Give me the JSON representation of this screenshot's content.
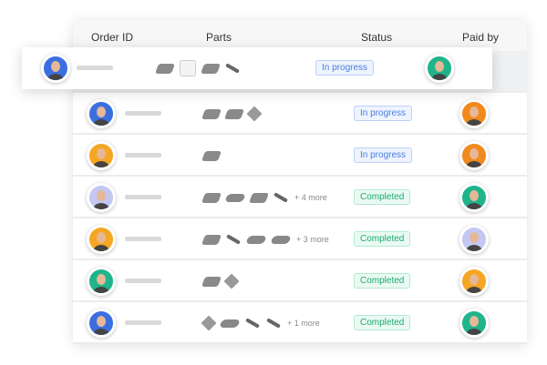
{
  "header": {
    "order_id": "Order ID",
    "parts": "Parts",
    "status": "Status",
    "paid_by": "Paid by"
  },
  "colors": {
    "in_progress": "#4a7de0",
    "completed": "#1ba876"
  },
  "floating_row": {
    "avatar_color": "#3b6fe0",
    "parts": [
      "bracket",
      "pyramid-model",
      "housing",
      "y-connector"
    ],
    "more": "",
    "status": "In progress",
    "status_type": "prog",
    "payer_color": "#1fb48b"
  },
  "rows": [
    {
      "avatar_color": "#3b6fe0",
      "parts": [
        "bracket",
        "block",
        "plate-cross"
      ],
      "more": "",
      "status": "In progress",
      "status_type": "prog",
      "payer_color": "#f08a1c"
    },
    {
      "avatar_color": "#f5a623",
      "parts": [
        "bracket"
      ],
      "more": "",
      "status": "In progress",
      "status_type": "prog",
      "payer_color": "#f08a1c"
    },
    {
      "avatar_color": "#c3c8f2",
      "parts": [
        "bracket",
        "cylinder",
        "housing",
        "y-connector"
      ],
      "more": "+ 4 more",
      "status": "Completed",
      "status_type": "done",
      "payer_color": "#1fb48b"
    },
    {
      "avatar_color": "#f5a623",
      "parts": [
        "bracket",
        "y-fitting",
        "pin",
        "tube"
      ],
      "more": "+ 3 more",
      "status": "Completed",
      "status_type": "done",
      "payer_color": "#c3c8f2"
    },
    {
      "avatar_color": "#1fb48b",
      "parts": [
        "bracket",
        "plate"
      ],
      "more": "",
      "status": "Completed",
      "status_type": "done",
      "payer_color": "#f5a623"
    },
    {
      "avatar_color": "#3b6fe0",
      "parts": [
        "plate",
        "cylinder",
        "y-fitting",
        "y-connector"
      ],
      "more": "+ 1 more",
      "status": "Completed",
      "status_type": "done",
      "payer_color": "#1fb48b"
    }
  ]
}
